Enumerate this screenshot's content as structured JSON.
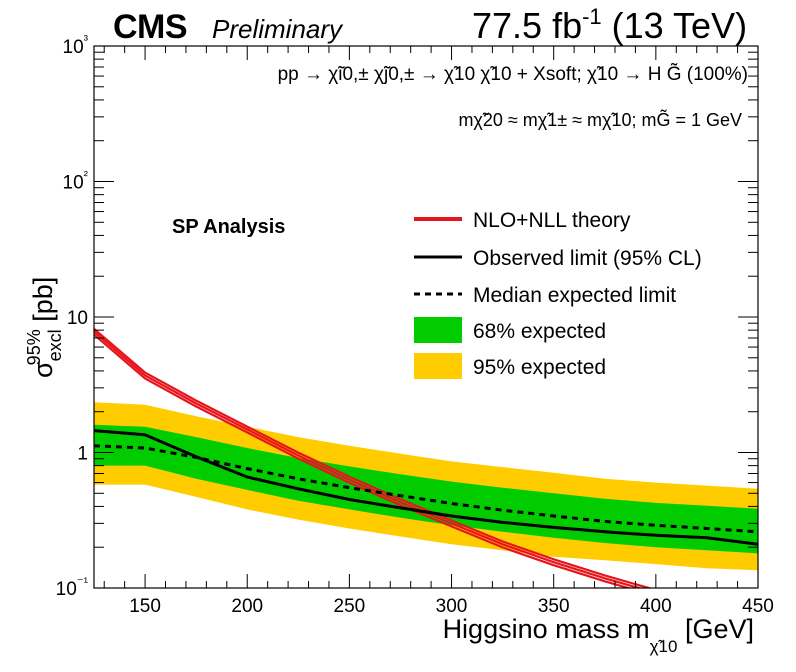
{
  "header": {
    "experiment": "CMS",
    "status": "Preliminary",
    "lumi_value": "77.5 fb",
    "lumi_exp": "-1",
    "energy": "(13 TeV)"
  },
  "process": {
    "line1_prefix": "pp",
    "line1": "pp → χ̃i0,± χ̃j0,± → χ̃10 χ̃10 + Xsoft; χ̃10 → H G̃ (100%)",
    "line2": "mχ̃20 ≈ mχ̃1± ≈ mχ̃10;  mG̃ = 1 GeV"
  },
  "analysis_label": "SP Analysis",
  "legend_items": {
    "theory": "NLO+NLL theory",
    "observed": "Observed limit (95% CL)",
    "expected": "Median expected limit",
    "band68": "68% expected",
    "band95": "95% expected"
  },
  "colors": {
    "theory": "#e8141c",
    "band68": "#00cc00",
    "band95": "#ffcc00",
    "line": "#000000"
  },
  "chart_data": {
    "type": "line",
    "xlabel": "Higgsino mass m",
    "xlabel_sub": "χ̃10",
    "xlabel_unit": "[GeV]",
    "ylabel": "σexcl95% [pb]",
    "xlim": [
      125,
      450
    ],
    "ylim": [
      0.1,
      1000
    ],
    "ylog": true,
    "x_ticks": [
      "150",
      "200",
      "250",
      "300",
      "350",
      "400",
      "450"
    ],
    "y_ticks": [
      "10⁻¹",
      "1",
      "10",
      "10²",
      "10³"
    ],
    "legend_position": "top-right",
    "grid": false,
    "theory": {
      "x": [
        125,
        150,
        175,
        200,
        225,
        250,
        275,
        300,
        325,
        350,
        375,
        400,
        405
      ],
      "y": [
        7.8,
        3.7,
        2.3,
        1.48,
        0.95,
        0.63,
        0.43,
        0.3,
        0.21,
        0.155,
        0.118,
        0.092,
        0.088
      ]
    },
    "observed": {
      "x": [
        125,
        150,
        175,
        200,
        225,
        250,
        275,
        300,
        325,
        350,
        375,
        400,
        425,
        450
      ],
      "y": [
        1.45,
        1.35,
        0.93,
        0.66,
        0.54,
        0.45,
        0.39,
        0.34,
        0.305,
        0.28,
        0.26,
        0.245,
        0.235,
        0.21
      ]
    },
    "expected": {
      "x": [
        125,
        150,
        175,
        200,
        225,
        250,
        275,
        300,
        325,
        350,
        375,
        400,
        425,
        450
      ],
      "y": [
        1.12,
        1.08,
        0.92,
        0.76,
        0.64,
        0.55,
        0.48,
        0.42,
        0.375,
        0.34,
        0.31,
        0.29,
        0.275,
        0.26
      ]
    },
    "band68": {
      "x": [
        125,
        150,
        175,
        200,
        225,
        250,
        275,
        300,
        325,
        350,
        375,
        400,
        425,
        450
      ],
      "low": [
        0.8,
        0.8,
        0.64,
        0.53,
        0.44,
        0.38,
        0.33,
        0.29,
        0.26,
        0.235,
        0.215,
        0.2,
        0.19,
        0.18
      ],
      "high": [
        1.6,
        1.55,
        1.3,
        1.08,
        0.91,
        0.79,
        0.69,
        0.61,
        0.55,
        0.5,
        0.455,
        0.425,
        0.405,
        0.385
      ]
    },
    "band95": {
      "x": [
        125,
        150,
        175,
        200,
        225,
        250,
        275,
        300,
        325,
        350,
        375,
        400,
        425,
        450
      ],
      "low": [
        0.58,
        0.58,
        0.47,
        0.38,
        0.32,
        0.275,
        0.24,
        0.21,
        0.19,
        0.17,
        0.16,
        0.15,
        0.14,
        0.135
      ],
      "high": [
        2.35,
        2.25,
        1.85,
        1.55,
        1.3,
        1.12,
        0.98,
        0.86,
        0.78,
        0.71,
        0.64,
        0.6,
        0.57,
        0.54
      ]
    }
  }
}
